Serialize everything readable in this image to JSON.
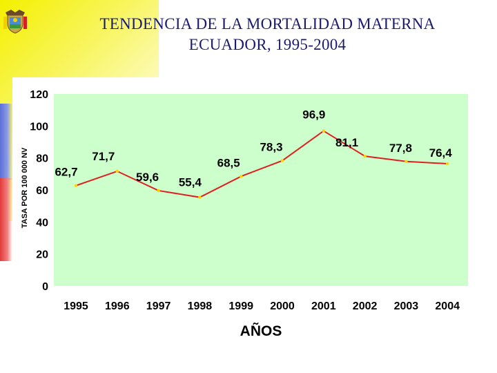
{
  "slide": {
    "title_line1": "TENDENCIA DE LA MORTALIDAD MATERNA",
    "title_line2": "ECUADOR, 1995-2004"
  },
  "colors": {
    "plot_bg": "#ccffcc",
    "line": "#e02020",
    "marker": "#ffd200",
    "title": "#1a1a6e"
  },
  "chart_data": {
    "type": "line",
    "categories": [
      "1995",
      "1996",
      "1997",
      "1998",
      "1999",
      "2000",
      "2001",
      "2002",
      "2003",
      "2004"
    ],
    "values": [
      62.7,
      71.7,
      59.6,
      55.4,
      68.5,
      78.3,
      96.9,
      81.1,
      77.8,
      76.4
    ],
    "data_labels": [
      "62,7",
      "71,7",
      "59,6",
      "55,4",
      "68,5",
      "78,3",
      "96,9",
      "81,1",
      "77,8",
      "76,4"
    ],
    "y_ticks": [
      "0",
      "20",
      "40",
      "60",
      "80",
      "100",
      "120"
    ],
    "ylim": [
      0,
      120
    ],
    "xlabel": "AÑOS",
    "ylabel": "TASA POR 100 000 NV",
    "grid": false,
    "legend": "none"
  }
}
